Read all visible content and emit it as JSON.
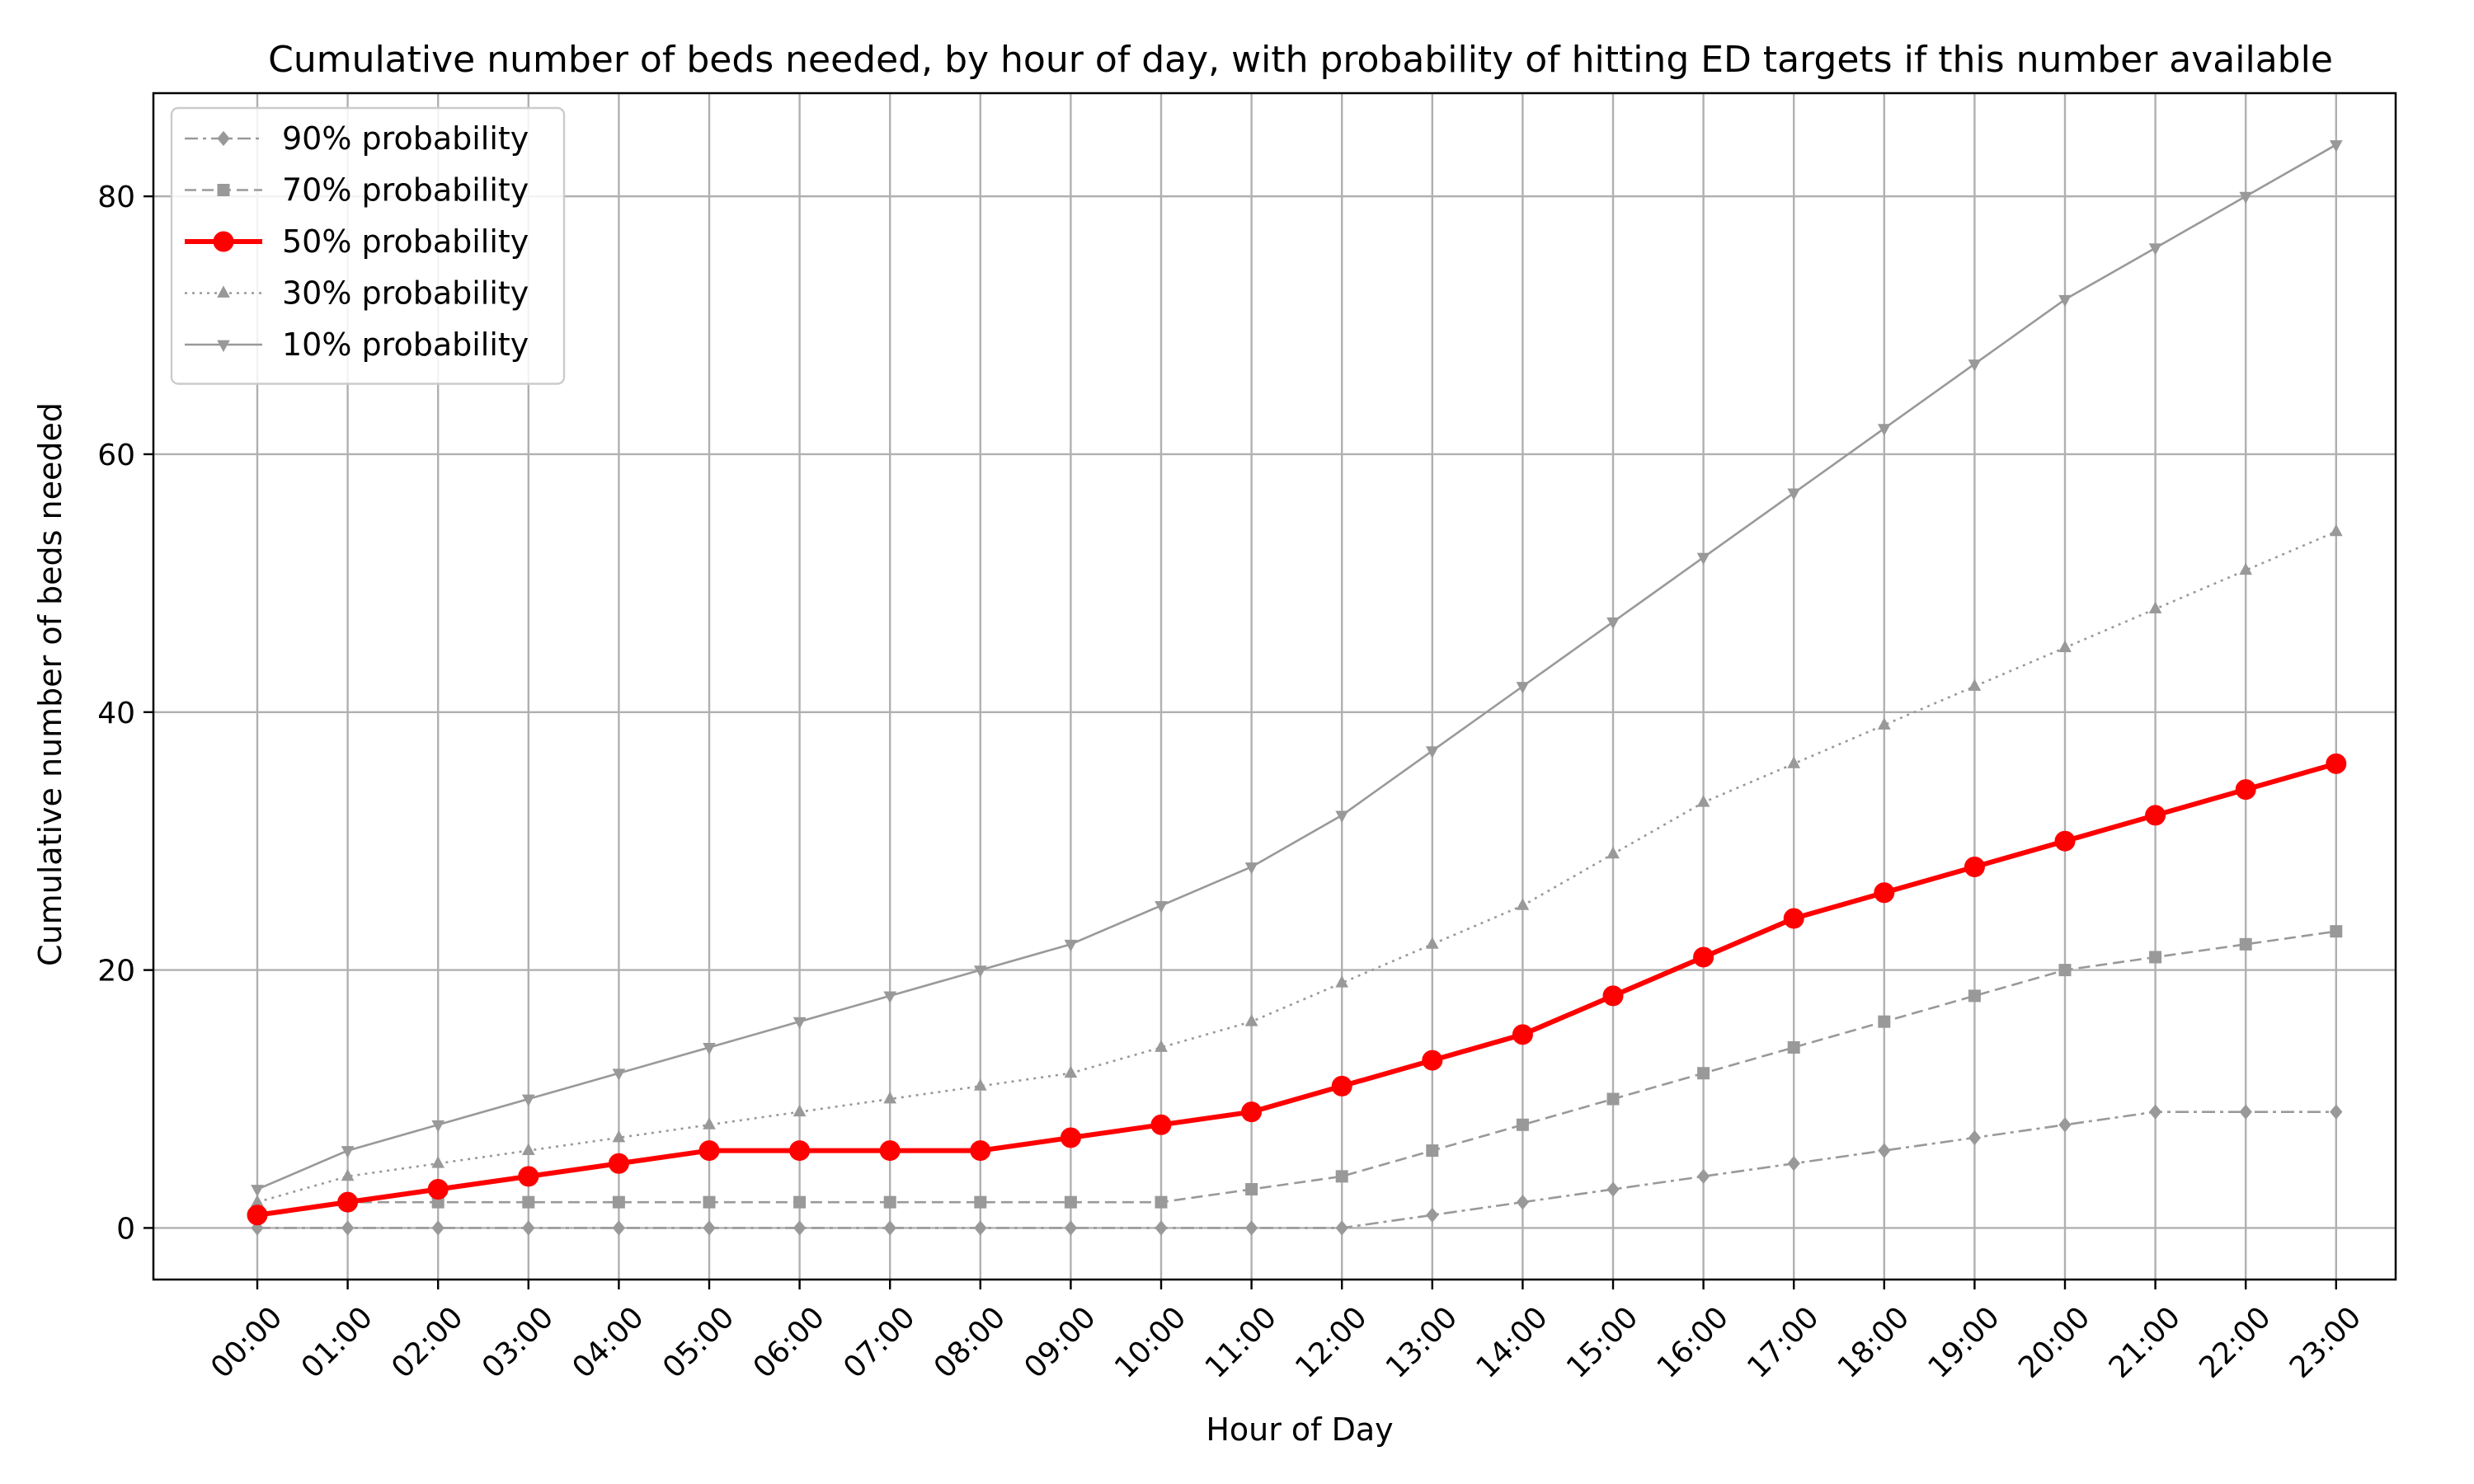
{
  "chart_data": {
    "type": "line",
    "title": "Cumulative number of beds needed, by hour of day, with probability of hitting ED targets if this number available",
    "xlabel": "Hour of Day",
    "ylabel": "Cumulative number of beds needed",
    "categories": [
      "00:00",
      "01:00",
      "02:00",
      "03:00",
      "04:00",
      "05:00",
      "06:00",
      "07:00",
      "08:00",
      "09:00",
      "10:00",
      "11:00",
      "12:00",
      "13:00",
      "14:00",
      "15:00",
      "16:00",
      "17:00",
      "18:00",
      "19:00",
      "20:00",
      "21:00",
      "22:00",
      "23:00"
    ],
    "ylim": [
      -4,
      88
    ],
    "yticks": [
      0,
      20,
      40,
      60,
      80
    ],
    "grid": true,
    "legend_position": "top-left",
    "series": [
      {
        "name": "90% probability",
        "values": [
          0,
          0,
          0,
          0,
          0,
          0,
          0,
          0,
          0,
          0,
          0,
          0,
          0,
          1,
          2,
          3,
          4,
          5,
          6,
          7,
          8,
          9,
          9,
          9
        ],
        "color": "#999999",
        "marker": "diamond",
        "linestyle": "dashdot",
        "highlight": false
      },
      {
        "name": "70% probability",
        "values": [
          1,
          2,
          2,
          2,
          2,
          2,
          2,
          2,
          2,
          2,
          2,
          3,
          4,
          6,
          8,
          10,
          12,
          14,
          16,
          18,
          20,
          21,
          22,
          23
        ],
        "color": "#999999",
        "marker": "square",
        "linestyle": "dashed",
        "highlight": false
      },
      {
        "name": "50% probability",
        "values": [
          1,
          2,
          3,
          4,
          5,
          6,
          6,
          6,
          6,
          7,
          8,
          9,
          11,
          13,
          15,
          18,
          21,
          24,
          26,
          28,
          30,
          32,
          34,
          36
        ],
        "color": "#ff0000",
        "marker": "circle",
        "linestyle": "solid",
        "highlight": true
      },
      {
        "name": "30% probability",
        "values": [
          2,
          4,
          5,
          6,
          7,
          8,
          9,
          10,
          11,
          12,
          14,
          16,
          19,
          22,
          25,
          29,
          33,
          36,
          39,
          42,
          45,
          48,
          51,
          54
        ],
        "color": "#999999",
        "marker": "triangle-up",
        "linestyle": "dotted",
        "highlight": false
      },
      {
        "name": "10% probability",
        "values": [
          3,
          6,
          8,
          10,
          12,
          14,
          16,
          18,
          20,
          22,
          25,
          28,
          32,
          37,
          42,
          47,
          52,
          57,
          62,
          67,
          72,
          76,
          80,
          84
        ],
        "color": "#999999",
        "marker": "triangle-down",
        "linestyle": "solid",
        "highlight": false
      }
    ]
  }
}
